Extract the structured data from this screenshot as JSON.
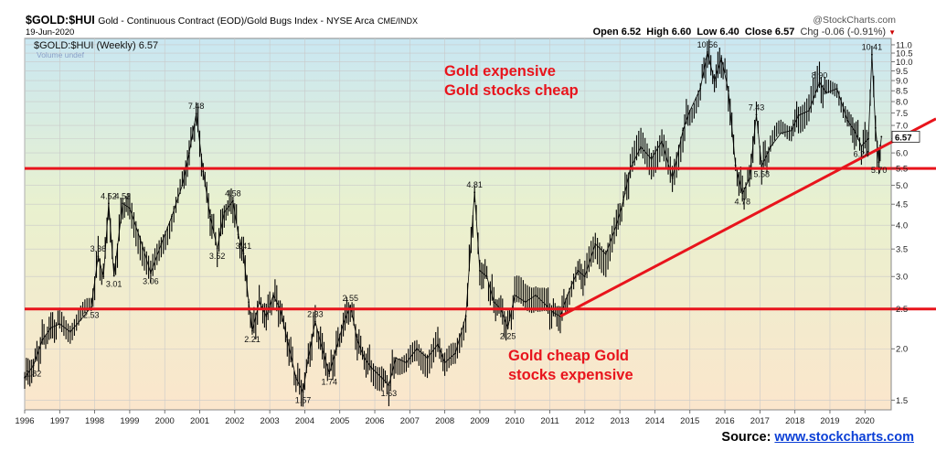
{
  "header": {
    "symbol": "$GOLD:$HUI",
    "description": "Gold - Continuous Contract (EOD)/Gold Bugs Index - NYSE Arca",
    "exchange": "CME/INDX",
    "date": "19-Jun-2020",
    "logo": "@StockCharts.com",
    "open": "Open 6.52",
    "high": "High 6.60",
    "low": "Low 6.40",
    "close": "Close 6.57",
    "chg": "Chg -0.06 (-0.91%)",
    "chg_marker": "▼"
  },
  "legend": {
    "series_label": "$GOLD:$HUI (Weekly) 6.57",
    "volume_label": "Volume undef"
  },
  "annotations": {
    "top_line1": "Gold expensive",
    "top_line2": "Gold stocks cheap",
    "bottom_line1": "Gold cheap Gold",
    "bottom_line2": "stocks expensive"
  },
  "source": {
    "prefix": "Source: ",
    "link": "www.stockcharts.com"
  },
  "colors": {
    "annotation_red": "#e8141c",
    "price": "#000000",
    "bg_top": "#c9e7f2",
    "bg_bottom": "#fbe6cc"
  },
  "chart_data": {
    "type": "line",
    "scale": "log",
    "series": [
      {
        "name": "$GOLD:$HUI (Weekly)",
        "points": [
          [
            1996.0,
            1.7
          ],
          [
            1996.25,
            1.82
          ],
          [
            1996.5,
            2.1
          ],
          [
            1996.75,
            2.25
          ],
          [
            1997.0,
            2.3
          ],
          [
            1997.3,
            2.2
          ],
          [
            1997.6,
            2.35
          ],
          [
            1997.9,
            2.53
          ],
          [
            1998.1,
            3.36
          ],
          [
            1998.25,
            3.0
          ],
          [
            1998.4,
            4.52
          ],
          [
            1998.55,
            3.01
          ],
          [
            1998.8,
            4.52
          ],
          [
            1999.0,
            4.4
          ],
          [
            1999.3,
            3.7
          ],
          [
            1999.6,
            3.06
          ],
          [
            1999.9,
            3.6
          ],
          [
            2000.2,
            4.2
          ],
          [
            2000.5,
            5.0
          ],
          [
            2000.7,
            6.0
          ],
          [
            2000.9,
            7.48
          ],
          [
            2001.1,
            5.4
          ],
          [
            2001.3,
            4.2
          ],
          [
            2001.5,
            3.52
          ],
          [
            2001.7,
            4.3
          ],
          [
            2001.95,
            4.58
          ],
          [
            2002.1,
            3.8
          ],
          [
            2002.25,
            3.41
          ],
          [
            2002.4,
            2.6
          ],
          [
            2002.5,
            2.21
          ],
          [
            2002.7,
            2.6
          ],
          [
            2002.9,
            2.4
          ],
          [
            2003.1,
            2.7
          ],
          [
            2003.3,
            2.5
          ],
          [
            2003.5,
            2.1
          ],
          [
            2003.75,
            1.7
          ],
          [
            2003.95,
            1.57
          ],
          [
            2004.1,
            1.9
          ],
          [
            2004.3,
            2.33
          ],
          [
            2004.5,
            2.0
          ],
          [
            2004.7,
            1.74
          ],
          [
            2004.9,
            2.0
          ],
          [
            2005.1,
            2.3
          ],
          [
            2005.3,
            2.55
          ],
          [
            2005.5,
            2.1
          ],
          [
            2005.7,
            1.9
          ],
          [
            2005.9,
            1.8
          ],
          [
            2006.2,
            1.7
          ],
          [
            2006.4,
            1.63
          ],
          [
            2006.6,
            1.9
          ],
          [
            2006.9,
            1.85
          ],
          [
            2007.2,
            2.0
          ],
          [
            2007.5,
            1.9
          ],
          [
            2007.8,
            2.05
          ],
          [
            2008.0,
            1.85
          ],
          [
            2008.3,
            1.95
          ],
          [
            2008.6,
            2.4
          ],
          [
            2008.85,
            4.81
          ],
          [
            2009.0,
            3.1
          ],
          [
            2009.2,
            3.0
          ],
          [
            2009.4,
            2.6
          ],
          [
            2009.6,
            2.5
          ],
          [
            2009.8,
            2.25
          ],
          [
            2010.0,
            2.7
          ],
          [
            2010.3,
            2.6
          ],
          [
            2010.6,
            2.7
          ],
          [
            2010.9,
            2.55
          ],
          [
            2011.1,
            2.45
          ],
          [
            2011.3,
            2.4
          ],
          [
            2011.5,
            2.7
          ],
          [
            2011.8,
            3.1
          ],
          [
            2012.0,
            3.0
          ],
          [
            2012.3,
            3.6
          ],
          [
            2012.6,
            3.4
          ],
          [
            2012.9,
            4.0
          ],
          [
            2013.1,
            4.6
          ],
          [
            2013.3,
            5.5
          ],
          [
            2013.6,
            6.2
          ],
          [
            2013.9,
            5.8
          ],
          [
            2014.2,
            6.4
          ],
          [
            2014.5,
            5.2
          ],
          [
            2014.8,
            6.8
          ],
          [
            2015.0,
            7.6
          ],
          [
            2015.3,
            8.6
          ],
          [
            2015.5,
            10.56
          ],
          [
            2015.7,
            9.0
          ],
          [
            2015.9,
            10.2
          ],
          [
            2016.1,
            8.5
          ],
          [
            2016.3,
            5.6
          ],
          [
            2016.5,
            4.78
          ],
          [
            2016.7,
            5.2
          ],
          [
            2016.9,
            7.43
          ],
          [
            2017.05,
            5.58
          ],
          [
            2017.3,
            6.2
          ],
          [
            2017.6,
            6.7
          ],
          [
            2017.9,
            6.8
          ],
          [
            2018.1,
            7.4
          ],
          [
            2018.4,
            7.6
          ],
          [
            2018.7,
            8.9
          ],
          [
            2018.9,
            8.4
          ],
          [
            2019.2,
            8.6
          ],
          [
            2019.5,
            7.2
          ],
          [
            2019.7,
            6.8
          ],
          [
            2019.9,
            6.24
          ],
          [
            2020.1,
            6.5
          ],
          [
            2020.2,
            10.41
          ],
          [
            2020.3,
            6.9
          ],
          [
            2020.4,
            5.7
          ],
          [
            2020.47,
            6.57
          ]
        ]
      }
    ],
    "horizontal_lines": [
      5.5,
      2.5
    ],
    "trendline": {
      "from": [
        2011.3,
        2.4
      ],
      "to": [
        2020.8,
        6.4
      ]
    },
    "labels": [
      {
        "x": 1996.25,
        "y": 1.82,
        "text": "1.82",
        "pos": "below"
      },
      {
        "x": 1997.9,
        "y": 2.53,
        "text": "2.53",
        "pos": "below"
      },
      {
        "x": 1998.1,
        "y": 3.36,
        "text": "3.36",
        "pos": "above"
      },
      {
        "x": 1998.4,
        "y": 4.52,
        "text": "4.52",
        "pos": "above"
      },
      {
        "x": 1998.55,
        "y": 3.01,
        "text": "3.01",
        "pos": "below"
      },
      {
        "x": 1998.8,
        "y": 4.52,
        "text": "4.52",
        "pos": "above"
      },
      {
        "x": 1999.6,
        "y": 3.06,
        "text": "3.06",
        "pos": "below"
      },
      {
        "x": 2000.9,
        "y": 7.48,
        "text": "7.48",
        "pos": "above"
      },
      {
        "x": 2001.5,
        "y": 3.52,
        "text": "3.52",
        "pos": "below"
      },
      {
        "x": 2001.95,
        "y": 4.58,
        "text": "4.58",
        "pos": "above"
      },
      {
        "x": 2002.25,
        "y": 3.41,
        "text": "3.41",
        "pos": "above"
      },
      {
        "x": 2002.5,
        "y": 2.21,
        "text": "2.21",
        "pos": "below"
      },
      {
        "x": 2003.95,
        "y": 1.57,
        "text": "1.57",
        "pos": "below"
      },
      {
        "x": 2004.3,
        "y": 2.33,
        "text": "2.33",
        "pos": "above"
      },
      {
        "x": 2004.7,
        "y": 1.74,
        "text": "1.74",
        "pos": "below"
      },
      {
        "x": 2005.3,
        "y": 2.55,
        "text": "2.55",
        "pos": "above"
      },
      {
        "x": 2006.4,
        "y": 1.63,
        "text": "1.63",
        "pos": "below"
      },
      {
        "x": 2008.85,
        "y": 4.81,
        "text": "4.81",
        "pos": "above"
      },
      {
        "x": 2009.8,
        "y": 2.25,
        "text": "2.25",
        "pos": "below"
      },
      {
        "x": 2015.5,
        "y": 10.56,
        "text": "10.56",
        "pos": "above"
      },
      {
        "x": 2016.5,
        "y": 4.78,
        "text": "4.78",
        "pos": "below"
      },
      {
        "x": 2016.9,
        "y": 7.43,
        "text": "7.43",
        "pos": "above"
      },
      {
        "x": 2017.05,
        "y": 5.58,
        "text": "5.58",
        "pos": "below"
      },
      {
        "x": 2018.7,
        "y": 8.9,
        "text": "8.90",
        "pos": "above"
      },
      {
        "x": 2019.9,
        "y": 6.24,
        "text": "6.24",
        "pos": "below"
      },
      {
        "x": 2020.2,
        "y": 10.41,
        "text": "10.41",
        "pos": "above"
      },
      {
        "x": 2020.4,
        "y": 5.7,
        "text": "5.70",
        "pos": "below"
      }
    ],
    "x_ticks": [
      "1996",
      "1997",
      "1998",
      "1999",
      "2000",
      "2001",
      "2002",
      "2003",
      "2004",
      "2005",
      "2006",
      "2007",
      "2008",
      "2009",
      "2010",
      "2011",
      "2012",
      "2013",
      "2014",
      "2015",
      "2016",
      "2017",
      "2018",
      "2019",
      "2020"
    ],
    "y_ticks": [
      "11.0",
      "10.5",
      "10.0",
      "9.5",
      "9.0",
      "8.5",
      "8.0",
      "7.5",
      "7.0",
      "6.5",
      "6.0",
      "5.5",
      "5.0",
      "4.5",
      "4.0",
      "3.5",
      "3.0",
      "2.5",
      "2.0",
      "1.5"
    ],
    "last_value": "6.57",
    "xlim": [
      1996.0,
      2020.75
    ],
    "ylim": [
      1.42,
      11.4
    ]
  }
}
